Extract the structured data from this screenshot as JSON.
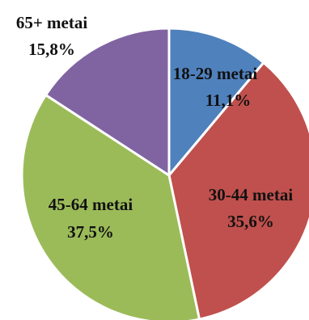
{
  "chart_data": {
    "type": "pie",
    "title": "",
    "categories": [
      "18-29 metai",
      "30-44 metai",
      "45-64 metai",
      "65+ metai"
    ],
    "values": [
      11.1,
      35.6,
      37.5,
      15.8
    ],
    "value_labels": [
      "11,1%",
      "35,6%",
      "37,5%",
      "15,8%"
    ],
    "colors": [
      "#4f81bd",
      "#c0504d",
      "#9bbb59",
      "#8064a2"
    ],
    "start_angle": "12 o'clock",
    "direction": "clockwise",
    "legend": "none",
    "label_placement": "data labels on slices; 65+ label outside top-left"
  }
}
